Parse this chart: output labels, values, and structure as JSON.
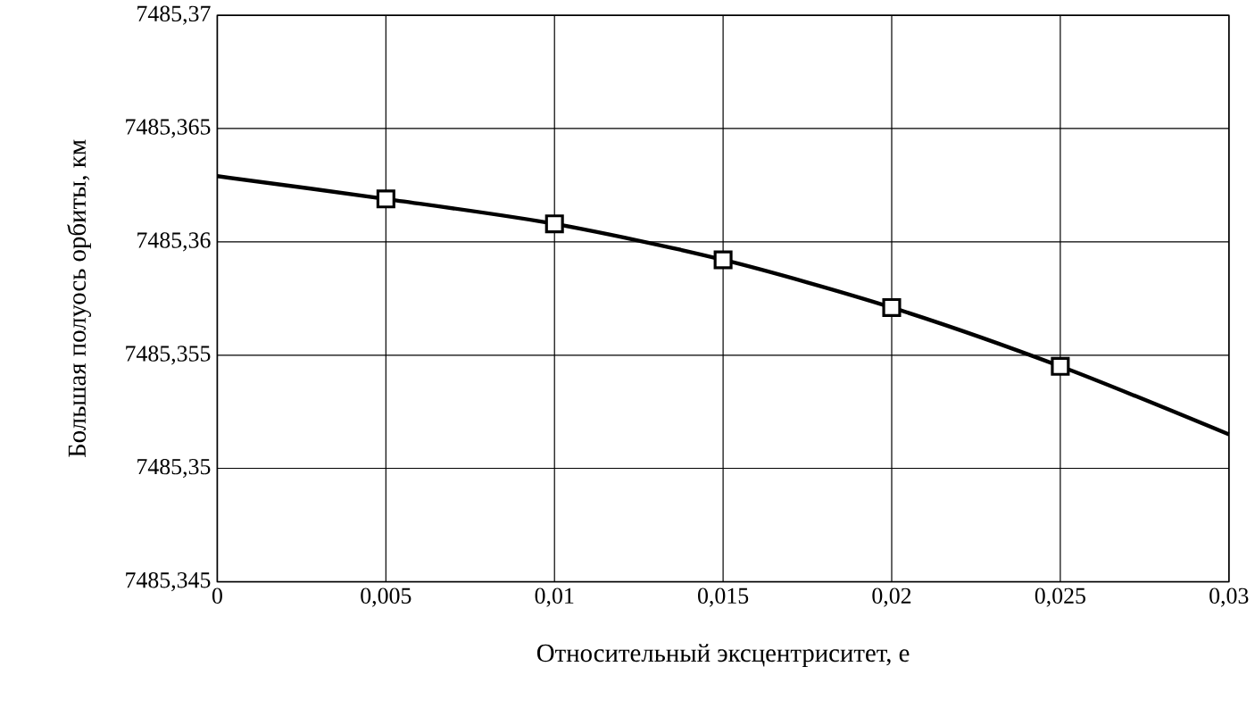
{
  "chart_data": {
    "type": "line",
    "xlabel": "Относительный эксцентриситет, e",
    "ylabel": "Большая полуось орбиты, км",
    "xlim": [
      0,
      0.03
    ],
    "ylim": [
      7485.345,
      7485.37
    ],
    "xticks": [
      {
        "value": 0,
        "label": "0"
      },
      {
        "value": 0.005,
        "label": "0,005"
      },
      {
        "value": 0.01,
        "label": "0,01"
      },
      {
        "value": 0.015,
        "label": "0,015"
      },
      {
        "value": 0.02,
        "label": "0,02"
      },
      {
        "value": 0.025,
        "label": "0,025"
      },
      {
        "value": 0.03,
        "label": "0,03"
      }
    ],
    "yticks": [
      {
        "value": 7485.345,
        "label": "7485,345"
      },
      {
        "value": 7485.35,
        "label": "7485,35"
      },
      {
        "value": 7485.355,
        "label": "7485,355"
      },
      {
        "value": 7485.36,
        "label": "7485,36"
      },
      {
        "value": 7485.365,
        "label": "7485,365"
      },
      {
        "value": 7485.37,
        "label": "7485,37"
      }
    ],
    "grid": true,
    "line_style": "solid",
    "series": [
      {
        "marker": "none",
        "color": "#000000",
        "x": [
          0,
          0.005,
          0.01,
          0.015,
          0.02,
          0.025,
          0.03
        ],
        "values": [
          7485.3629,
          7485.3619,
          7485.3608,
          7485.3592,
          7485.3571,
          7485.3545,
          7485.3515
        ]
      },
      {
        "type": "scatter",
        "marker": "square",
        "color": "#000000",
        "x": [
          0.005,
          0.01,
          0.015,
          0.02,
          0.025
        ],
        "values": [
          7485.3619,
          7485.3608,
          7485.3592,
          7485.3571,
          7485.3545
        ]
      }
    ]
  }
}
